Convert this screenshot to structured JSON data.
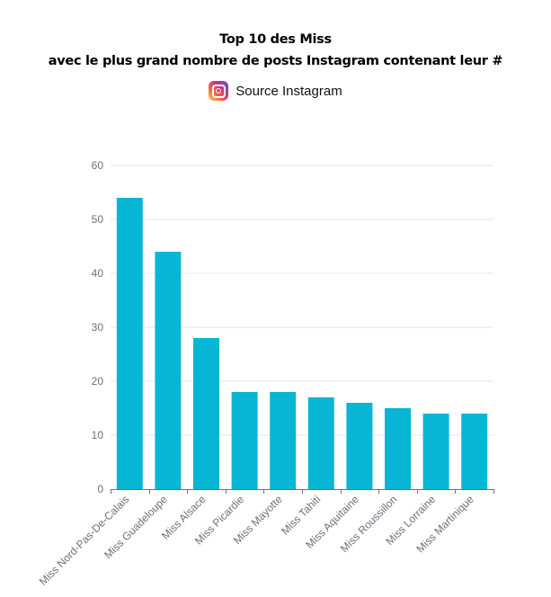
{
  "header": {
    "title_line1": "Top 10 des Miss",
    "title_line2": "avec le plus grand nombre de posts Instagram contenant leur #",
    "source": "Source Instagram",
    "source_icon": "instagram-icon"
  },
  "colors": {
    "bar": "#06b6d4",
    "grid": "#e0e6f1",
    "axis": "#6e7079",
    "tick_label": "#6e7079"
  },
  "chart_data": {
    "type": "bar",
    "title": "Top 10 des Miss avec le plus grand nombre de posts Instagram contenant leur #",
    "categories": [
      "Miss Nord-Pas-De-Calais",
      "Miss Guadeloupe",
      "Miss Alsace",
      "Miss Picardie",
      "Miss Mayotte",
      "Miss Tahiti",
      "Miss Aquitaine",
      "Miss Roussillon",
      "Miss Lorraine",
      "Miss Martinique"
    ],
    "values": [
      54,
      44,
      28,
      18,
      18,
      17,
      16,
      15,
      14,
      14
    ],
    "yticks": [
      0,
      10,
      20,
      30,
      40,
      50,
      60
    ],
    "ylim": [
      0,
      60
    ],
    "xlabel": "",
    "ylabel": "",
    "grid": true
  }
}
